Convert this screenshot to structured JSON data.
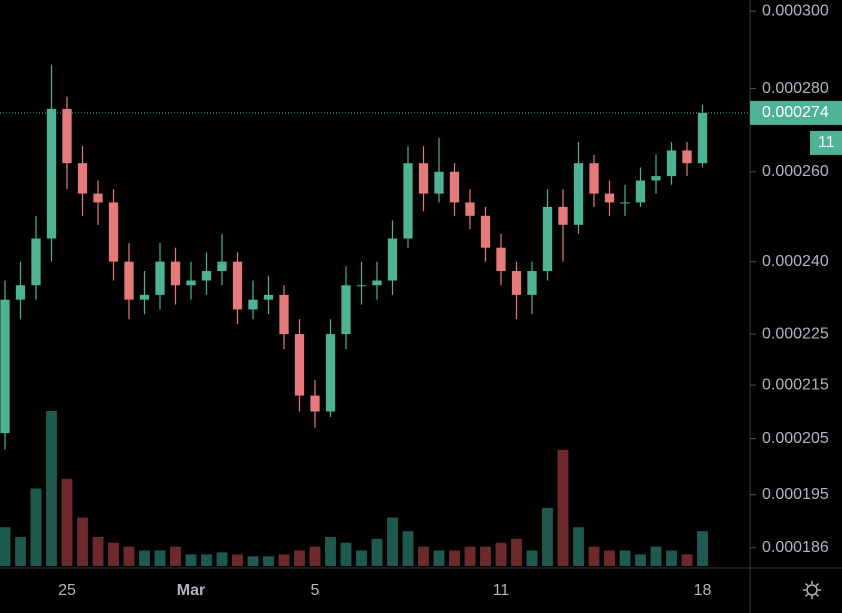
{
  "chart_data": {
    "type": "candlestick",
    "log_scale": true,
    "categories": [
      null,
      null,
      null,
      null,
      "25",
      null,
      null,
      null,
      null,
      null,
      null,
      null,
      "Mar",
      null,
      null,
      null,
      null,
      null,
      null,
      null,
      "5",
      null,
      null,
      null,
      null,
      null,
      null,
      null,
      null,
      null,
      null,
      null,
      "11",
      null,
      null,
      null,
      null,
      null,
      null,
      null,
      null,
      null,
      null,
      null,
      null,
      "18"
    ],
    "open": [
      0.000206,
      0.000232,
      0.000235,
      0.000245,
      0.000275,
      0.000262,
      0.000255,
      0.000253,
      0.00024,
      0.000232,
      0.000233,
      0.00024,
      0.000235,
      0.000236,
      0.000238,
      0.00024,
      0.00023,
      0.000232,
      0.000233,
      0.000225,
      0.000213,
      0.00021,
      0.000225,
      0.000235,
      0.000235,
      0.000236,
      0.000245,
      0.000262,
      0.000255,
      0.00026,
      0.000253,
      0.00025,
      0.000243,
      0.000238,
      0.000233,
      0.000238,
      0.000252,
      0.000248,
      0.000262,
      0.000255,
      0.000253,
      0.000253,
      0.000258,
      0.000259,
      0.000265,
      0.000262
    ],
    "high": [
      0.000236,
      0.00024,
      0.00025,
      0.000286,
      0.000278,
      0.000266,
      0.000258,
      0.000256,
      0.000244,
      0.000238,
      0.000244,
      0.000243,
      0.00024,
      0.000242,
      0.000246,
      0.000242,
      0.000236,
      0.000237,
      0.000235,
      0.000228,
      0.000216,
      0.000228,
      0.000239,
      0.00024,
      0.00024,
      0.000249,
      0.000266,
      0.000266,
      0.000268,
      0.000262,
      0.000256,
      0.000252,
      0.000246,
      0.00024,
      0.00024,
      0.000256,
      0.000256,
      0.000267,
      0.000264,
      0.000258,
      0.000257,
      0.000261,
      0.000264,
      0.000267,
      0.000267,
      0.000276
    ],
    "low": [
      0.000203,
      0.000228,
      0.000232,
      0.00024,
      0.000256,
      0.00025,
      0.000248,
      0.000236,
      0.000228,
      0.000229,
      0.00023,
      0.000231,
      0.000232,
      0.000233,
      0.000235,
      0.000227,
      0.000228,
      0.000229,
      0.000222,
      0.00021,
      0.000207,
      0.000209,
      0.000222,
      0.000231,
      0.000232,
      0.000233,
      0.000243,
      0.000251,
      0.000253,
      0.00025,
      0.000247,
      0.00024,
      0.000235,
      0.000228,
      0.000229,
      0.000236,
      0.00024,
      0.000246,
      0.000252,
      0.00025,
      0.00025,
      0.000252,
      0.000255,
      0.000257,
      0.000259,
      0.000261
    ],
    "close": [
      0.000232,
      0.000235,
      0.000245,
      0.000275,
      0.000262,
      0.000255,
      0.000253,
      0.00024,
      0.000232,
      0.000233,
      0.00024,
      0.000235,
      0.000236,
      0.000238,
      0.00024,
      0.00023,
      0.000232,
      0.000233,
      0.000225,
      0.000213,
      0.00021,
      0.000225,
      0.000235,
      0.000235,
      0.000236,
      0.000245,
      0.000262,
      0.000255,
      0.00026,
      0.000253,
      0.00025,
      0.000243,
      0.000238,
      0.000233,
      0.000238,
      0.000252,
      0.000248,
      0.000262,
      0.000255,
      0.000253,
      0.000253,
      0.000258,
      0.000259,
      0.000265,
      0.000262,
      0.000274
    ],
    "volume": [
      20,
      15,
      40,
      80,
      45,
      25,
      15,
      12,
      10,
      8,
      8,
      10,
      6,
      6,
      7,
      6,
      5,
      5,
      6,
      8,
      10,
      15,
      12,
      8,
      14,
      25,
      18,
      10,
      8,
      8,
      10,
      10,
      12,
      14,
      8,
      30,
      60,
      20,
      10,
      8,
      8,
      6,
      10,
      8,
      6,
      18
    ],
    "up_color": "#4db394",
    "down_color": "#e57a7a",
    "up_volume_color": "#1e5a50",
    "down_volume_color": "#6e2a2a",
    "ylim": [
      0.000183,
      0.000303
    ],
    "yticks": [
      {
        "value": 0.0003,
        "label": "0.000300"
      },
      {
        "value": 0.00028,
        "label": "0.000280"
      },
      {
        "value": 0.00026,
        "label": "0.000260"
      },
      {
        "value": 0.00024,
        "label": "0.000240"
      },
      0.000225,
      0.000215,
      0.000205,
      0.000195,
      0.000186
    ],
    "last_price": 0.000274,
    "countdown": "11",
    "last_price_color": "#4db394"
  }
}
